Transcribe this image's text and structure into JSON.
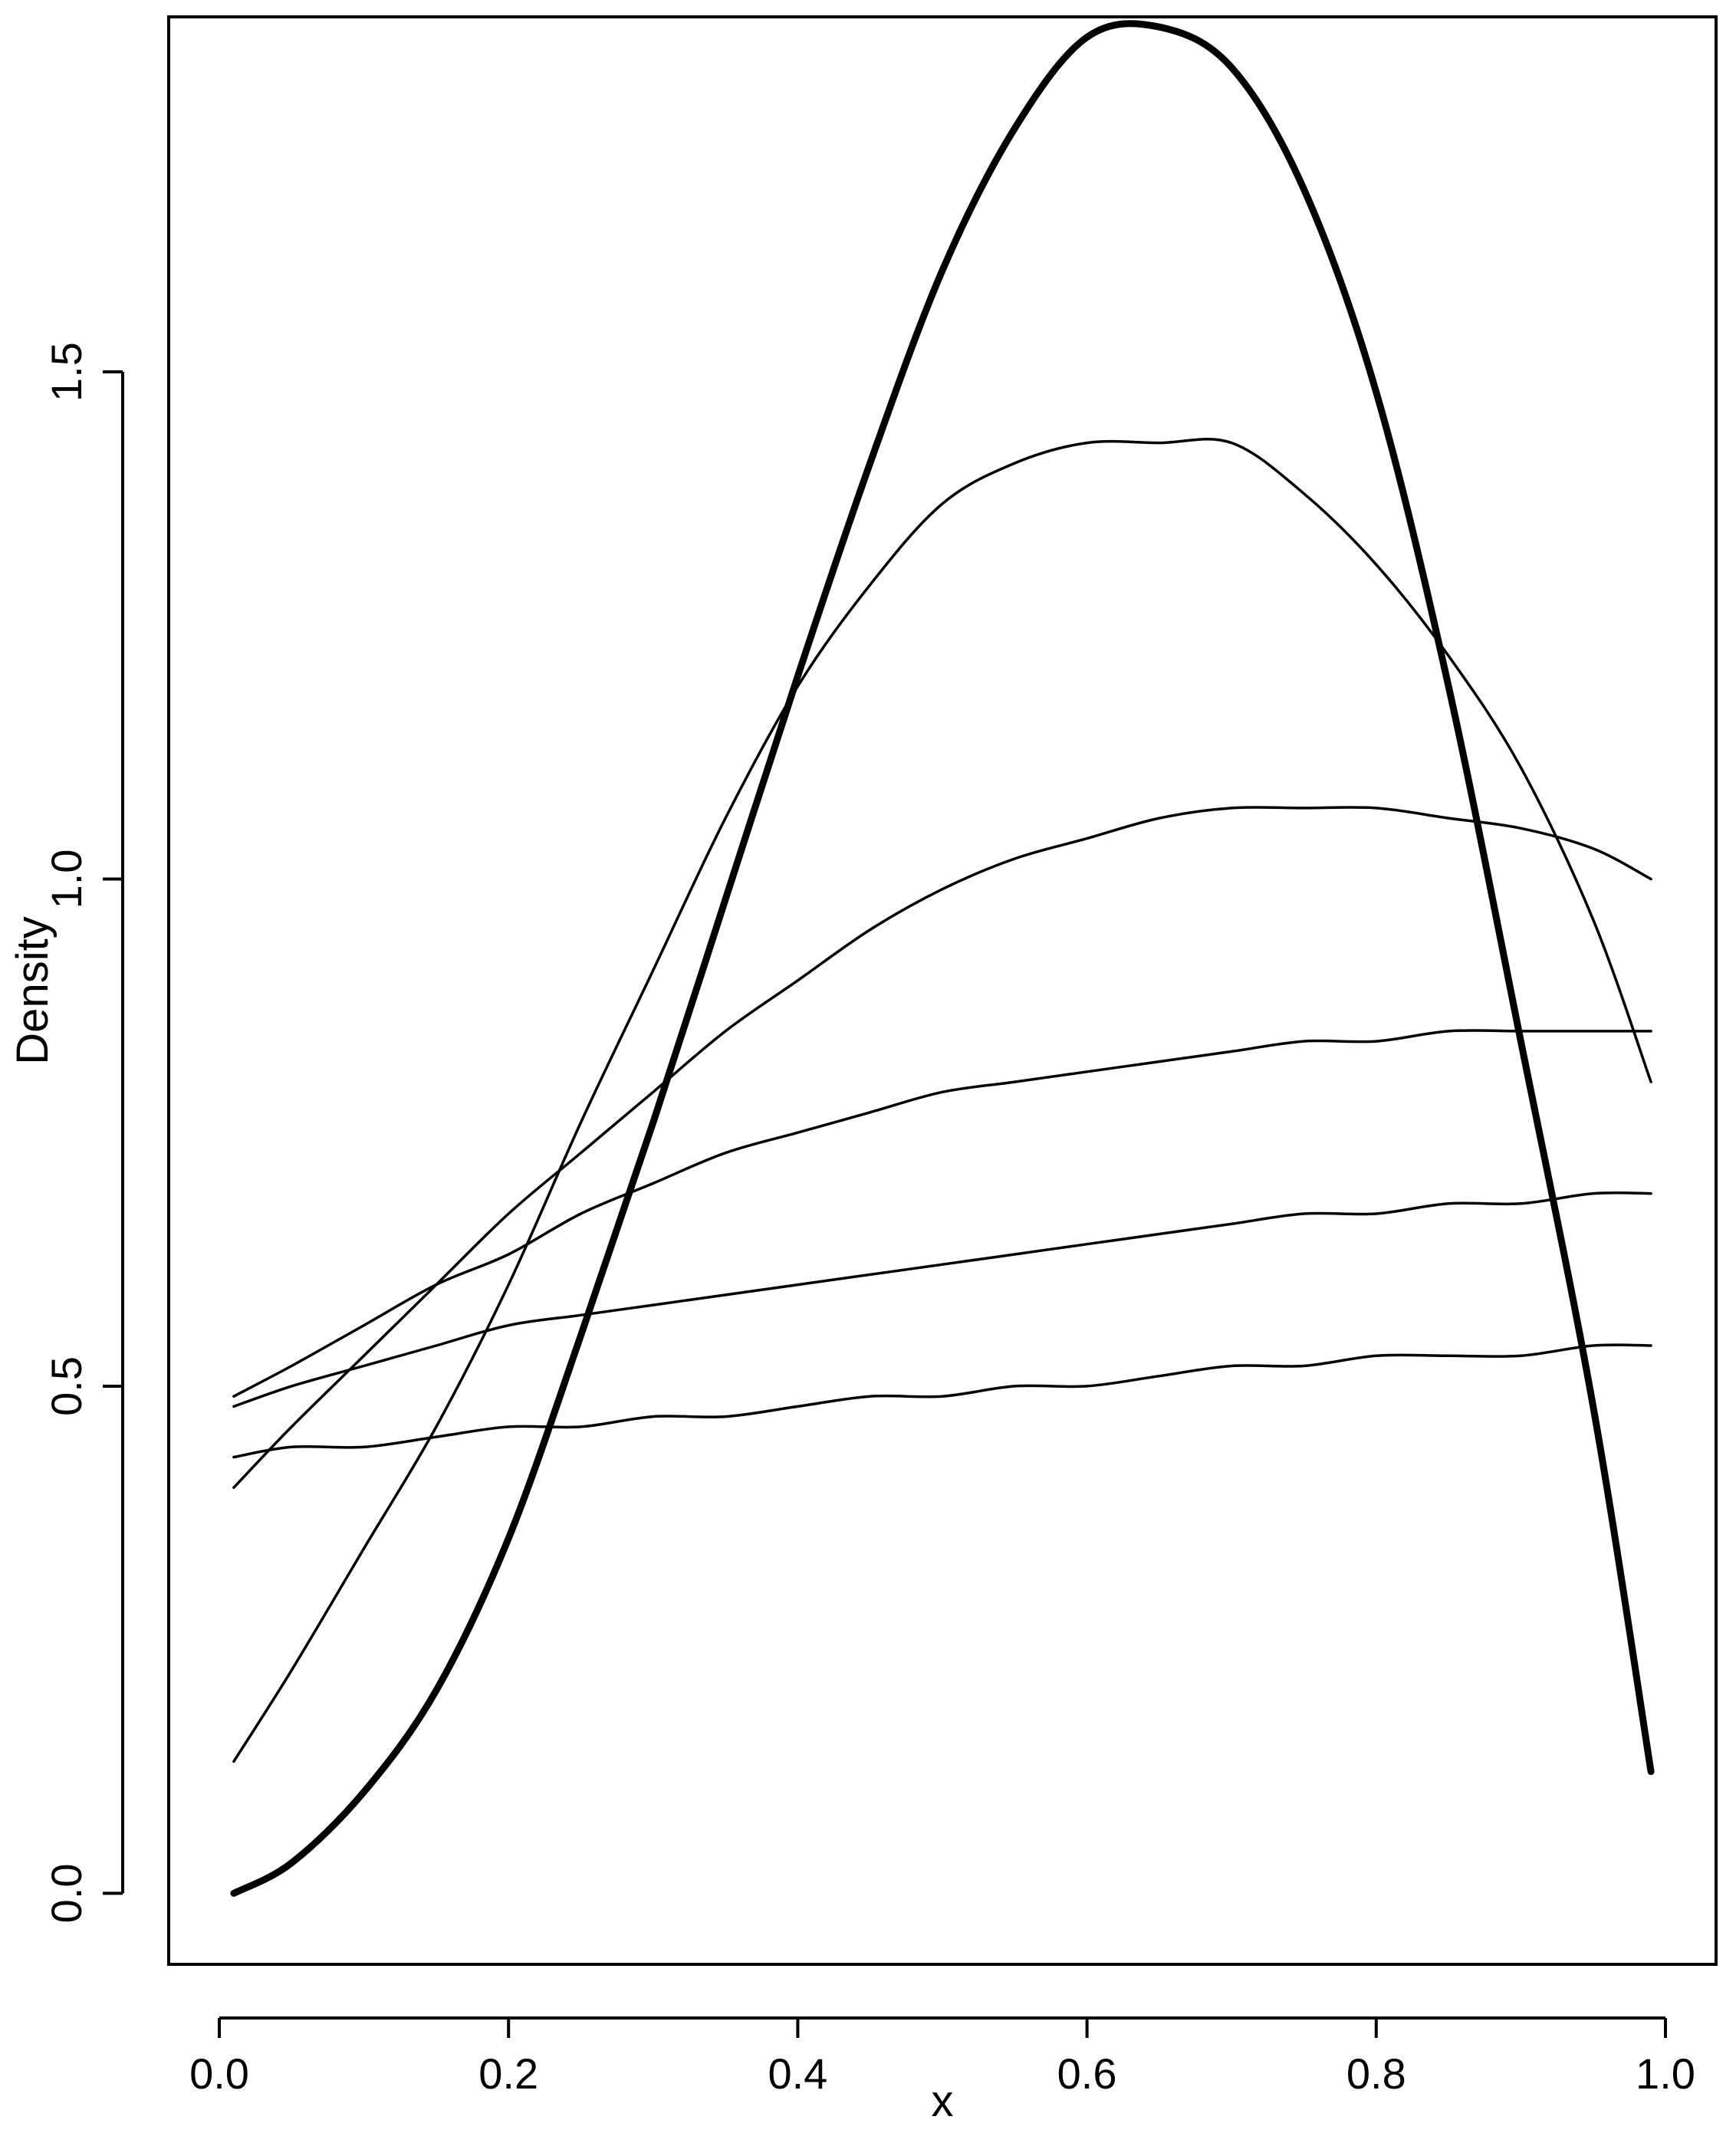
{
  "chart_data": {
    "type": "line",
    "title": "",
    "xlabel": "x",
    "ylabel": "Density",
    "xlim": [
      -0.035,
      1.035
    ],
    "ylim": [
      -0.07,
      1.85
    ],
    "x_ticks": [
      0.0,
      0.2,
      0.4,
      0.6,
      0.8,
      1.0
    ],
    "x_tick_labels": [
      "0.0",
      "0.2",
      "0.4",
      "0.6",
      "0.8",
      "1.0"
    ],
    "y_ticks": [
      0.0,
      0.5,
      1.0,
      1.5
    ],
    "y_tick_labels": [
      "0.0",
      "0.5",
      "1.0",
      "1.5"
    ],
    "grid": false,
    "legend": "none",
    "line_color": "#000000",
    "x": [
      0.01,
      0.05,
      0.1,
      0.15,
      0.2,
      0.25,
      0.3,
      0.35,
      0.4,
      0.45,
      0.5,
      0.55,
      0.6,
      0.65,
      0.7,
      0.75,
      0.8,
      0.85,
      0.9,
      0.95,
      0.99
    ],
    "series": [
      {
        "emphasis": "bold",
        "values": [
          0.0,
          0.03,
          0.1,
          0.2,
          0.35,
          0.55,
          0.76,
          0.98,
          1.2,
          1.41,
          1.6,
          1.74,
          1.83,
          1.84,
          1.8,
          1.68,
          1.48,
          1.19,
          0.84,
          0.48,
          0.12
        ]
      },
      {
        "emphasis": "normal",
        "values": [
          0.13,
          0.22,
          0.34,
          0.46,
          0.6,
          0.76,
          0.91,
          1.06,
          1.19,
          1.29,
          1.37,
          1.41,
          1.43,
          1.43,
          1.43,
          1.38,
          1.31,
          1.22,
          1.11,
          0.96,
          0.8
        ]
      },
      {
        "emphasis": "normal",
        "values": [
          0.4,
          0.46,
          0.53,
          0.6,
          0.67,
          0.73,
          0.79,
          0.85,
          0.9,
          0.95,
          0.99,
          1.02,
          1.04,
          1.06,
          1.07,
          1.07,
          1.07,
          1.06,
          1.05,
          1.03,
          1.0
        ]
      },
      {
        "emphasis": "normal",
        "values": [
          0.49,
          0.52,
          0.56,
          0.6,
          0.63,
          0.67,
          0.7,
          0.73,
          0.75,
          0.77,
          0.79,
          0.8,
          0.81,
          0.82,
          0.83,
          0.84,
          0.84,
          0.85,
          0.85,
          0.85,
          0.85
        ]
      },
      {
        "emphasis": "normal",
        "values": [
          0.48,
          0.5,
          0.52,
          0.54,
          0.56,
          0.57,
          0.58,
          0.59,
          0.6,
          0.61,
          0.62,
          0.63,
          0.64,
          0.65,
          0.66,
          0.67,
          0.67,
          0.68,
          0.68,
          0.69,
          0.69
        ]
      },
      {
        "emphasis": "normal",
        "values": [
          0.43,
          0.44,
          0.44,
          0.45,
          0.46,
          0.46,
          0.47,
          0.47,
          0.48,
          0.49,
          0.49,
          0.5,
          0.5,
          0.51,
          0.52,
          0.52,
          0.53,
          0.53,
          0.53,
          0.54,
          0.54
        ]
      }
    ]
  }
}
